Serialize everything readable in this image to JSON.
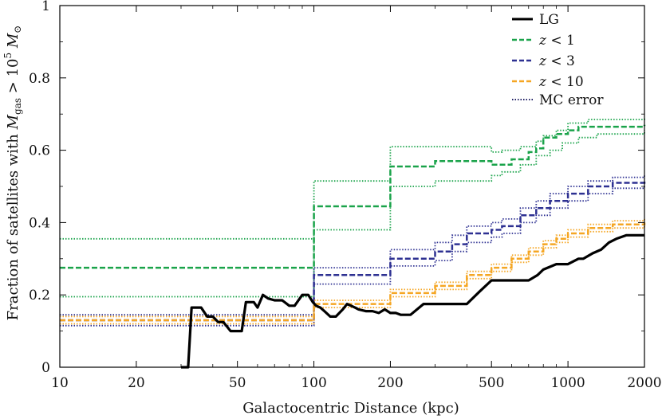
{
  "chart_data": {
    "type": "line",
    "xlabel": "Galactocentric Distance (kpc)",
    "ylabel": "Fraction of satellites with M_gas > 10^5 M_⊙",
    "ylabel_parts": {
      "prefix": "Fraction of satellites with ",
      "m": "M",
      "m_sub": "gas",
      "rel": " > 10",
      "exp": "5",
      "msun": " M",
      "sun": "⊙"
    },
    "x_scale": "log",
    "xlim": [
      10,
      2000
    ],
    "ylim": [
      0,
      1
    ],
    "x_ticks": [
      10,
      20,
      50,
      100,
      200,
      500,
      1000,
      2000
    ],
    "x_tick_labels": [
      "10",
      "20",
      "50",
      "100",
      "200",
      "500",
      "1000",
      "2000"
    ],
    "y_ticks": [
      0,
      0.2,
      0.4,
      0.6,
      0.8,
      1
    ],
    "y_tick_labels": [
      "0",
      "0.2",
      "0.4",
      "0.6",
      "0.8",
      "1"
    ],
    "grid": false,
    "legend_position": "top-right",
    "legend": [
      {
        "label": "LG",
        "style": "solid",
        "color": "#000000"
      },
      {
        "label_var": "z",
        "label_rel": " < ",
        "label_num": "1",
        "style": "dashed",
        "color": "#1aa34a"
      },
      {
        "label_var": "z",
        "label_rel": " < ",
        "label_num": "3",
        "style": "dashed",
        "color": "#2e3192"
      },
      {
        "label_var": "z",
        "label_rel": " < ",
        "label_num": "10",
        "style": "dashed",
        "color": "#f5a623"
      },
      {
        "label": "MC error",
        "style": "dotted",
        "color": "#222266"
      }
    ],
    "series": [
      {
        "name": "LG",
        "color": "#000000",
        "style": "solid",
        "x": [
          30,
          32,
          33,
          36,
          38,
          40,
          42,
          44,
          47,
          52,
          54,
          58,
          60,
          63,
          66,
          70,
          75,
          80,
          84,
          90,
          95,
          99,
          102,
          106,
          110,
          116,
          122,
          130,
          135,
          140,
          145,
          150,
          160,
          170,
          180,
          190,
          200,
          210,
          220,
          240,
          270,
          300,
          400,
          450,
          500,
          560,
          700,
          760,
          800,
          900,
          1000,
          1100,
          1150,
          1250,
          1350,
          1450,
          1550,
          1700,
          2000
        ],
        "y": [
          0,
          0,
          0.165,
          0.165,
          0.14,
          0.14,
          0.125,
          0.125,
          0.1,
          0.1,
          0.18,
          0.18,
          0.165,
          0.2,
          0.19,
          0.185,
          0.185,
          0.17,
          0.17,
          0.2,
          0.2,
          0.18,
          0.17,
          0.165,
          0.155,
          0.14,
          0.14,
          0.16,
          0.175,
          0.17,
          0.165,
          0.16,
          0.155,
          0.155,
          0.15,
          0.16,
          0.15,
          0.15,
          0.145,
          0.145,
          0.175,
          0.175,
          0.175,
          0.21,
          0.24,
          0.24,
          0.24,
          0.255,
          0.27,
          0.285,
          0.285,
          0.3,
          0.3,
          0.315,
          0.325,
          0.345,
          0.355,
          0.365,
          0.365
        ]
      },
      {
        "name_var": "z",
        "name_rel": " < ",
        "name_num": "1",
        "color": "#1aa34a",
        "style": "dashed",
        "mean": {
          "x": [
            10,
            100,
            200,
            300,
            500,
            600,
            700,
            750,
            800,
            900,
            1000,
            1100,
            2000
          ],
          "y": [
            0.275,
            0.445,
            0.555,
            0.57,
            0.56,
            0.575,
            0.595,
            0.605,
            0.635,
            0.645,
            0.655,
            0.665,
            0.67
          ]
        },
        "upper": {
          "x": [
            10,
            100,
            200,
            500,
            550,
            650,
            750,
            800,
            900,
            1000,
            1200,
            2000
          ],
          "y": [
            0.355,
            0.515,
            0.61,
            0.595,
            0.6,
            0.61,
            0.625,
            0.64,
            0.655,
            0.675,
            0.685,
            0.69
          ]
        },
        "lower": {
          "x": [
            10,
            100,
            200,
            300,
            500,
            550,
            650,
            750,
            850,
            950,
            1100,
            1300,
            2000
          ],
          "y": [
            0.195,
            0.38,
            0.5,
            0.515,
            0.53,
            0.54,
            0.56,
            0.585,
            0.6,
            0.62,
            0.635,
            0.645,
            0.655
          ]
        }
      },
      {
        "name_var": "z",
        "name_rel": " < ",
        "name_num": "3",
        "color": "#2e3192",
        "style": "dashed",
        "mean": {
          "x": [
            10,
            100,
            200,
            300,
            350,
            400,
            500,
            550,
            650,
            750,
            850,
            1000,
            1200,
            1500,
            2000
          ],
          "y": [
            0.13,
            0.255,
            0.3,
            0.32,
            0.34,
            0.37,
            0.38,
            0.39,
            0.42,
            0.44,
            0.46,
            0.48,
            0.5,
            0.51,
            0.52
          ]
        },
        "upper": {
          "x": [
            10,
            100,
            200,
            300,
            350,
            400,
            500,
            550,
            650,
            750,
            850,
            1000,
            1200,
            1500,
            2000
          ],
          "y": [
            0.145,
            0.275,
            0.325,
            0.345,
            0.365,
            0.39,
            0.4,
            0.41,
            0.44,
            0.46,
            0.48,
            0.5,
            0.515,
            0.525,
            0.53
          ]
        },
        "lower": {
          "x": [
            10,
            100,
            200,
            300,
            350,
            400,
            500,
            550,
            650,
            750,
            850,
            1000,
            1200,
            1500,
            2000
          ],
          "y": [
            0.115,
            0.23,
            0.28,
            0.295,
            0.32,
            0.345,
            0.36,
            0.37,
            0.4,
            0.42,
            0.44,
            0.46,
            0.48,
            0.495,
            0.505
          ]
        }
      },
      {
        "name_var": "z",
        "name_rel": " < ",
        "name_num": "10",
        "color": "#f5a623",
        "style": "dashed",
        "mean": {
          "x": [
            10,
            100,
            200,
            300,
            400,
            500,
            600,
            700,
            800,
            900,
            1000,
            1200,
            1500,
            2000
          ],
          "y": [
            0.13,
            0.175,
            0.205,
            0.225,
            0.255,
            0.275,
            0.3,
            0.32,
            0.34,
            0.355,
            0.37,
            0.385,
            0.395,
            0.4
          ]
        },
        "upper": {
          "x": [
            10,
            100,
            200,
            300,
            400,
            500,
            600,
            700,
            800,
            900,
            1000,
            1200,
            1500,
            2000
          ],
          "y": [
            0.14,
            0.185,
            0.215,
            0.235,
            0.265,
            0.285,
            0.31,
            0.33,
            0.35,
            0.365,
            0.38,
            0.395,
            0.405,
            0.41
          ]
        },
        "lower": {
          "x": [
            10,
            100,
            200,
            300,
            400,
            500,
            600,
            700,
            800,
            900,
            1000,
            1200,
            1500,
            2000
          ],
          "y": [
            0.12,
            0.165,
            0.195,
            0.215,
            0.245,
            0.265,
            0.29,
            0.31,
            0.33,
            0.345,
            0.36,
            0.375,
            0.385,
            0.39
          ]
        }
      }
    ]
  }
}
